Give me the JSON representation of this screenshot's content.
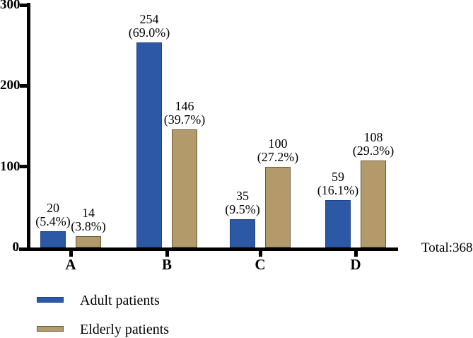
{
  "chart_data": {
    "type": "bar",
    "title": "",
    "categories": [
      "A",
      "B",
      "C",
      "D"
    ],
    "series": [
      {
        "name": "Adult patients",
        "color": "#2d58a5",
        "border_color": "#1f4286",
        "values": [
          20,
          254,
          35,
          59
        ],
        "percent_labels": [
          "(5.4%)",
          "(69.0%)",
          "(9.5%)",
          "(16.1%)"
        ]
      },
      {
        "name": "Elderly patients",
        "color": "#b29a6b",
        "border_color": "#6a5c40",
        "values": [
          14,
          146,
          100,
          108
        ],
        "percent_labels": [
          "(3.8%)",
          "(39.7%)",
          "(27.2%)",
          "(29.3%)"
        ]
      }
    ],
    "ylim": [
      0,
      300
    ],
    "yticks": [
      0,
      100,
      200,
      300
    ],
    "ytick_labels": [
      "0",
      "100",
      "200",
      "300"
    ],
    "annotation": "Total:368",
    "legend_position": "bottom-left",
    "grid": false,
    "axis_color": "#000000",
    "background_color": "#ffffff"
  },
  "legend": {
    "items": [
      {
        "label": "Adult patients"
      },
      {
        "label": "Elderly patients"
      }
    ]
  }
}
